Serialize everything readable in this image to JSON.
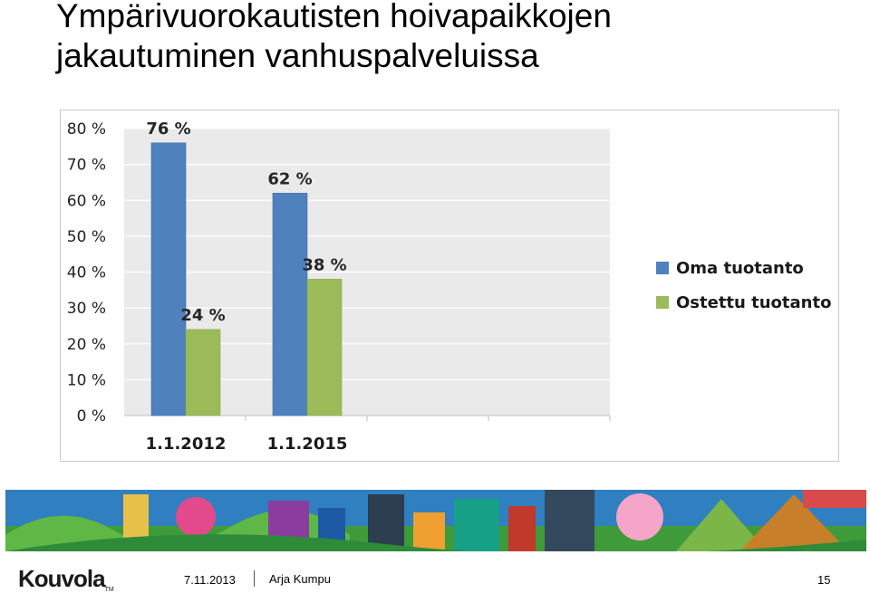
{
  "slide": {
    "title_lines": [
      "Ympärivuorokautisten hoivapaikkojen",
      "jakautuminen vanhuspalveluissa"
    ]
  },
  "chart_data": {
    "type": "bar",
    "categories": [
      "1.1.2012",
      "1.1.2015"
    ],
    "series": [
      {
        "name": "Oma tuotanto",
        "values": [
          76,
          62
        ],
        "labels": [
          "76 %",
          "62 %"
        ],
        "color": "#4f81bd"
      },
      {
        "name": "Ostettu tuotanto",
        "values": [
          24,
          38
        ],
        "labels": [
          "24 %",
          "38 %"
        ],
        "color": "#9bbb59"
      }
    ],
    "yticks": [
      "0 %",
      "10 %",
      "20 %",
      "30 %",
      "40 %",
      "50 %",
      "60 %",
      "70 %",
      "80 %"
    ],
    "ylim": [
      0,
      80
    ],
    "grid": true,
    "legend_position": "right",
    "plot_background": "#eaeaea"
  },
  "footer": {
    "logo_text": "Kouvola",
    "logo_tm": "TM",
    "date": "7.11.2013",
    "author": "Arja Kumpu",
    "page": "15"
  }
}
